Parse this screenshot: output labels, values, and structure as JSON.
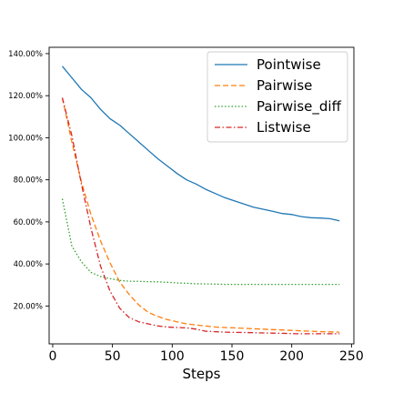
{
  "chart_data": {
    "type": "line",
    "title": "",
    "xlabel": "Steps",
    "ylabel": "",
    "xlim": [
      -3,
      252
    ],
    "ylim": [
      0.02,
      1.43
    ],
    "xticks": [
      0,
      50,
      100,
      150,
      200,
      250
    ],
    "xtick_labels": [
      "0",
      "50",
      "100",
      "150",
      "200",
      "250"
    ],
    "yticks": [
      0.2,
      0.4,
      0.6,
      0.8,
      1.0,
      1.2,
      1.4
    ],
    "ytick_labels": [
      "20.00%",
      "40.00%",
      "60.00%",
      "80.00%",
      "100.00%",
      "120.00%",
      "140.00%"
    ],
    "grid": false,
    "legend_position": "top-right",
    "series": [
      {
        "name": "Pointwise",
        "color": "#1f77b4",
        "dash": "solid",
        "x": [
          8,
          16,
          24,
          32,
          40,
          48,
          56,
          64,
          72,
          80,
          88,
          96,
          104,
          112,
          120,
          128,
          136,
          144,
          152,
          160,
          168,
          176,
          184,
          192,
          200,
          208,
          216,
          224,
          232,
          240
        ],
        "y": [
          1.34,
          1.285,
          1.23,
          1.19,
          1.135,
          1.09,
          1.06,
          1.02,
          0.98,
          0.94,
          0.9,
          0.865,
          0.83,
          0.8,
          0.78,
          0.755,
          0.735,
          0.715,
          0.7,
          0.685,
          0.67,
          0.66,
          0.65,
          0.64,
          0.635,
          0.625,
          0.62,
          0.618,
          0.615,
          0.605
        ]
      },
      {
        "name": "Pairwise",
        "color": "#ff7f0e",
        "dash": "dashed",
        "x": [
          8,
          16,
          24,
          32,
          40,
          48,
          56,
          64,
          72,
          80,
          88,
          96,
          104,
          112,
          120,
          128,
          136,
          144,
          152,
          160,
          168,
          176,
          184,
          192,
          200,
          208,
          216,
          224,
          232,
          240
        ],
        "y": [
          1.19,
          0.98,
          0.79,
          0.635,
          0.51,
          0.405,
          0.315,
          0.255,
          0.205,
          0.17,
          0.15,
          0.135,
          0.125,
          0.115,
          0.11,
          0.105,
          0.1,
          0.098,
          0.096,
          0.094,
          0.092,
          0.09,
          0.088,
          0.086,
          0.084,
          0.082,
          0.08,
          0.078,
          0.077,
          0.076
        ]
      },
      {
        "name": "Pairwise_diff",
        "color": "#2ca02c",
        "dash": "dotted",
        "x": [
          8,
          16,
          24,
          32,
          40,
          48,
          56,
          64,
          72,
          80,
          88,
          96,
          104,
          112,
          120,
          128,
          136,
          144,
          152,
          160,
          168,
          176,
          184,
          192,
          200,
          208,
          216,
          224,
          232,
          240
        ],
        "y": [
          0.71,
          0.485,
          0.41,
          0.36,
          0.34,
          0.33,
          0.322,
          0.318,
          0.317,
          0.316,
          0.315,
          0.313,
          0.31,
          0.308,
          0.306,
          0.305,
          0.304,
          0.303,
          0.303,
          0.303,
          0.303,
          0.303,
          0.303,
          0.303,
          0.303,
          0.303,
          0.303,
          0.303,
          0.303,
          0.303
        ]
      },
      {
        "name": "Listwise",
        "color": "#d62728",
        "dash": "dashdot",
        "x": [
          8,
          16,
          24,
          32,
          40,
          48,
          56,
          64,
          72,
          80,
          88,
          96,
          104,
          112,
          120,
          128,
          136,
          144,
          152,
          160,
          168,
          176,
          184,
          192,
          200,
          208,
          216,
          224,
          232,
          240
        ],
        "y": [
          1.19,
          1.01,
          0.78,
          0.57,
          0.39,
          0.27,
          0.19,
          0.145,
          0.125,
          0.115,
          0.105,
          0.1,
          0.098,
          0.096,
          0.09,
          0.08,
          0.078,
          0.076,
          0.075,
          0.074,
          0.073,
          0.072,
          0.071,
          0.07,
          0.069,
          0.068,
          0.068,
          0.068,
          0.068,
          0.068
        ]
      }
    ]
  }
}
